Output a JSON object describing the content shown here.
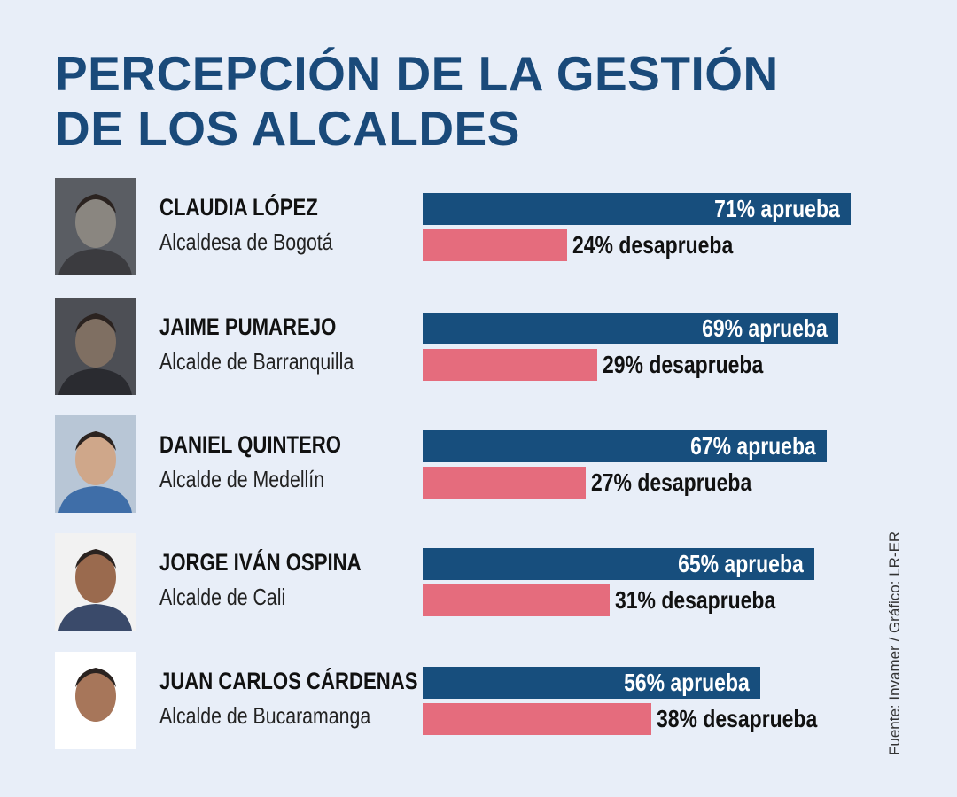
{
  "title_line1": "PERCEPCIÓN DE LA GESTIÓN",
  "title_line2": "DE LOS ALCALDES",
  "source": "Fuente: Invamer / Gráfico: LR-ER",
  "colors": {
    "approve": "#174e7d",
    "disapprove": "#e56c7d",
    "title": "#1a4a7a",
    "background": "#e8eef8"
  },
  "chart_data": {
    "type": "bar",
    "orientation": "horizontal",
    "title": "PERCEPCIÓN DE LA GESTIÓN DE LOS ALCALDES",
    "categories": [
      "CLAUDIA LÓPEZ",
      "JAIME PUMAREJO",
      "DANIEL QUINTERO",
      "JORGE IVÁN OSPINA",
      "JUAN CARLOS CÁRDENAS"
    ],
    "series": [
      {
        "name": "aprueba",
        "values": [
          71,
          69,
          67,
          65,
          56
        ]
      },
      {
        "name": "desaprueba",
        "values": [
          24,
          29,
          27,
          31,
          38
        ]
      }
    ],
    "unit": "%",
    "xlim": [
      0,
      100
    ],
    "grid": false
  },
  "mayors": [
    {
      "name": "CLAUDIA LÓPEZ",
      "role": "Alcaldesa de Bogotá",
      "approve_label": "71% aprueba",
      "disapprove_label": "24% desaprueba"
    },
    {
      "name": "JAIME PUMAREJO",
      "role": "Alcalde de Barranquilla",
      "approve_label": "69% aprueba",
      "disapprove_label": "29% desaprueba"
    },
    {
      "name": "DANIEL QUINTERO",
      "role": "Alcalde de Medellín",
      "approve_label": "67% aprueba",
      "disapprove_label": "27% desaprueba"
    },
    {
      "name": "JORGE IVÁN OSPINA",
      "role": "Alcalde de Cali",
      "approve_label": "65% aprueba",
      "disapprove_label": "31% desaprueba"
    },
    {
      "name": "JUAN CARLOS CÁRDENAS",
      "role": "Alcalde de Bucaramanga",
      "approve_label": "56% aprueba",
      "disapprove_label": "38% desaprueba"
    }
  ]
}
